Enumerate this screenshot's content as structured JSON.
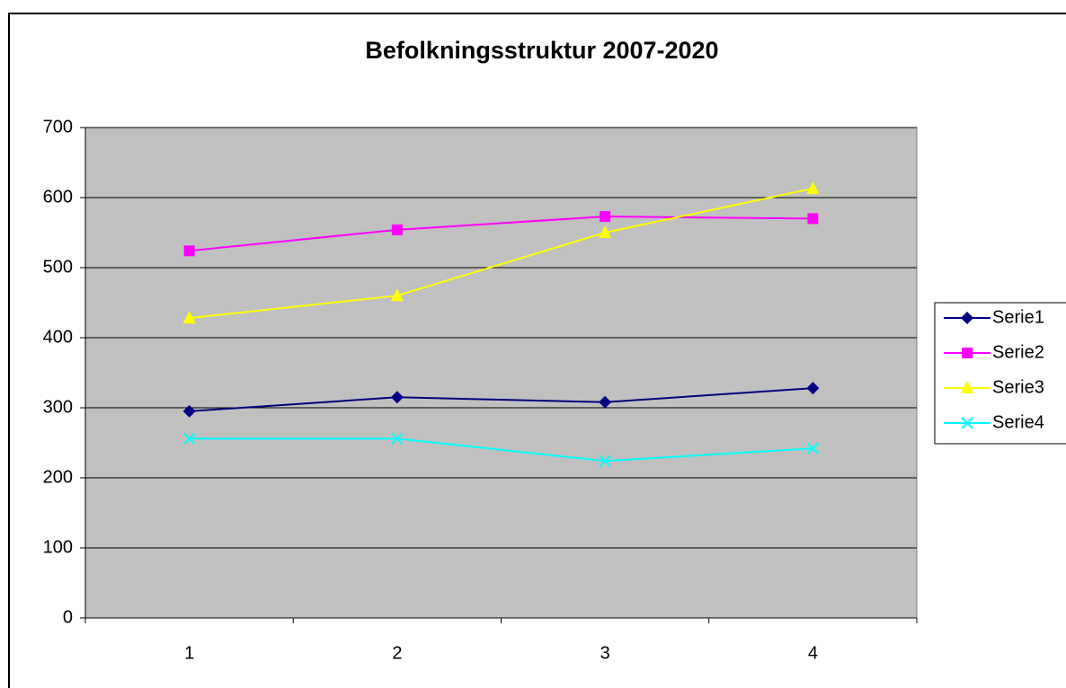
{
  "chart_data": {
    "type": "line",
    "title": "Befolkningsstruktur 2007-2020",
    "categories": [
      "1",
      "2",
      "3",
      "4"
    ],
    "series": [
      {
        "name": "Serie1",
        "color": "#000080",
        "marker": "diamond",
        "values": [
          295,
          315,
          308,
          328
        ]
      },
      {
        "name": "Serie2",
        "color": "#ff00ff",
        "marker": "square",
        "values": [
          524,
          554,
          573,
          570
        ]
      },
      {
        "name": "Serie3",
        "color": "#ffff00",
        "marker": "triangle",
        "values": [
          428,
          460,
          550,
          613
        ]
      },
      {
        "name": "Serie4",
        "color": "#00ffff",
        "marker": "x",
        "values": [
          256,
          256,
          224,
          242
        ]
      }
    ],
    "ylim": [
      0,
      700
    ],
    "yticks": [
      0,
      100,
      200,
      300,
      400,
      500,
      600,
      700
    ],
    "grid": true,
    "plot_background": "#c0c0c0",
    "legend": "right"
  }
}
